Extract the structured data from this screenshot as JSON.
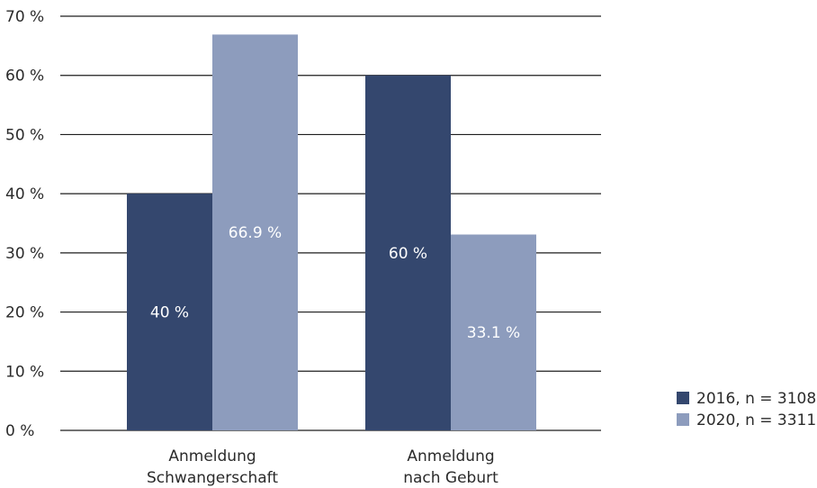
{
  "chart_data": {
    "type": "bar",
    "title": "",
    "xlabel": "",
    "ylabel": "",
    "ylim": [
      0,
      70
    ],
    "yticks": [
      0,
      10,
      20,
      30,
      40,
      50,
      60,
      70
    ],
    "ytick_labels": [
      "0 %",
      "10 %",
      "20 %",
      "30 %",
      "40 %",
      "50 %",
      "60 %",
      "70 %"
    ],
    "grid": true,
    "legend_position": "bottom-right",
    "categories": [
      [
        "Anmeldung",
        "Schwangerschaft"
      ],
      [
        "Anmeldung",
        "nach Geburt"
      ]
    ],
    "series": [
      {
        "name": "2016, n = 3108",
        "color": "#34476e",
        "values": [
          40,
          60
        ],
        "labels": [
          "40 %",
          "60 %"
        ]
      },
      {
        "name": "2020, n = 3311",
        "color": "#8d9cbd",
        "values": [
          66.9,
          33.1
        ],
        "labels": [
          "66.9 %",
          "33.1 %"
        ]
      }
    ]
  }
}
